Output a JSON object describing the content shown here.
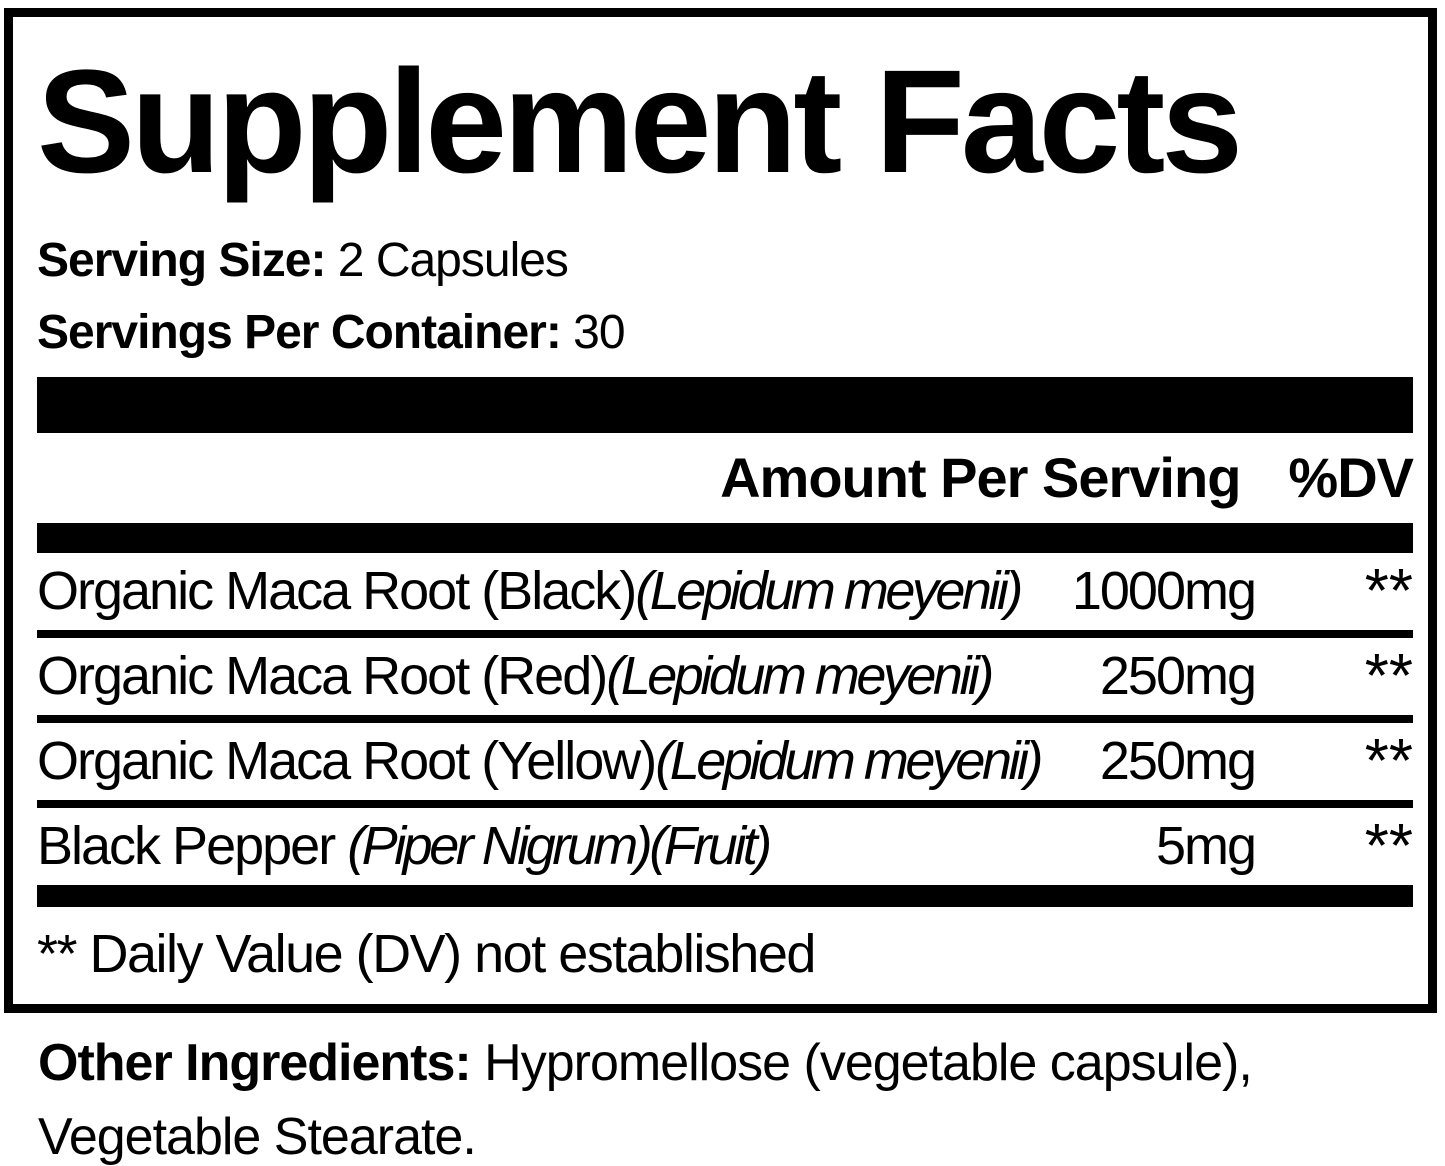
{
  "label": {
    "title": "Supplement Facts",
    "serving_size_label": "Serving Size:",
    "serving_size_value": "2 Capsules",
    "servings_per_container_label": "Servings Per Container:",
    "servings_per_container_value": "30",
    "columns": {
      "amount_per_serving": "Amount Per Serving",
      "percent_dv": "%DV"
    },
    "rows": [
      {
        "name": "Organic Maca Root (Black)",
        "latin": "(Lepidum meyenii)",
        "amount": "1000mg",
        "dv": "**"
      },
      {
        "name": "Organic Maca Root (Red)",
        "latin": "(Lepidum meyenii)",
        "amount": "250mg",
        "dv": "**"
      },
      {
        "name": "Organic Maca Root (Yellow)",
        "latin": "(Lepidum meyenii)",
        "amount": "250mg",
        "dv": "**"
      },
      {
        "name": "Black Pepper ",
        "latin": "(Piper Nigrum)(Fruit)",
        "amount": "5mg",
        "dv": "**"
      }
    ],
    "footnote": "** Daily Value (DV) not established",
    "other_ingredients_label": "Other Ingredients:",
    "other_ingredients_value": "Hypromellose (vegetable capsule), Vegetable Stearate."
  },
  "colors": {
    "ink": "#000000",
    "background": "#ffffff"
  }
}
